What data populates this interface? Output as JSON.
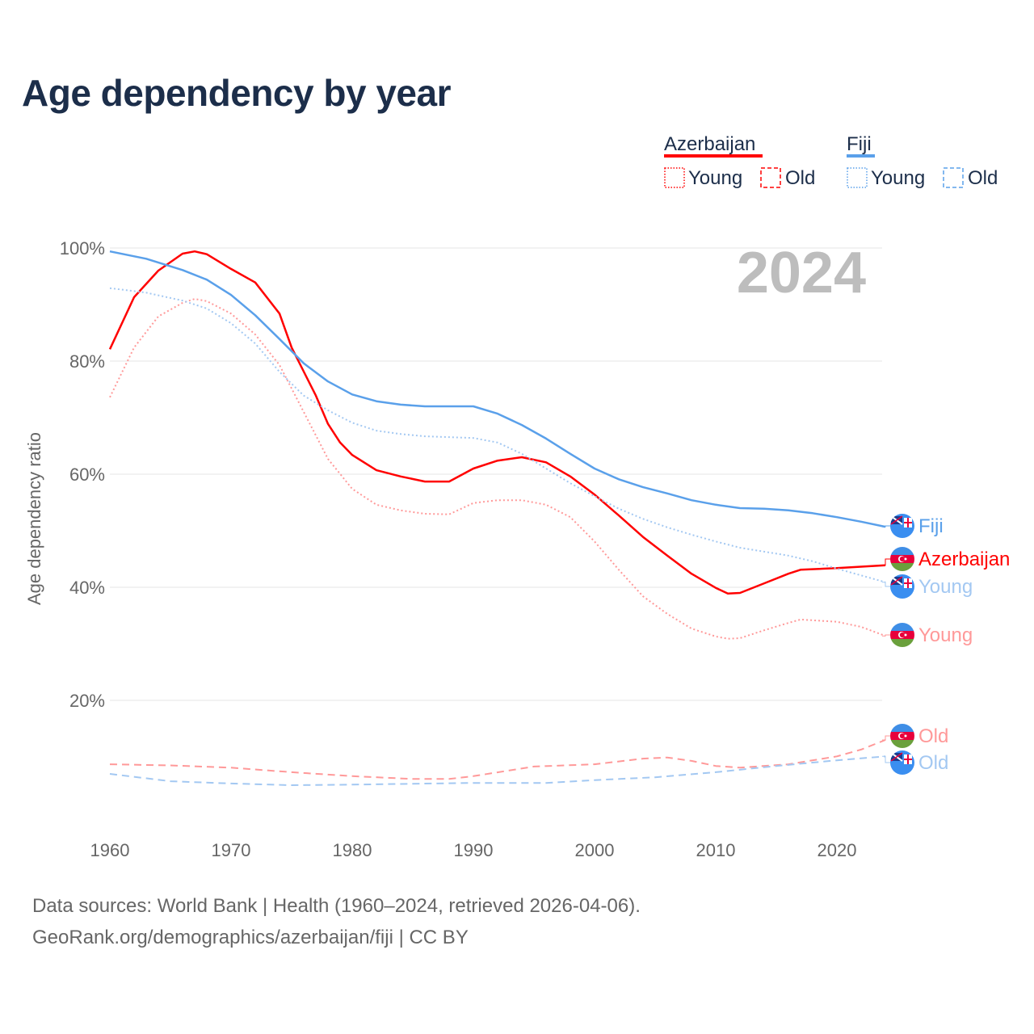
{
  "title": "Age dependency by year",
  "sources": [
    "Data sources: World Bank | Health (1960–2024, retrieved 2026-04-06).",
    "GeoRank.org/demographics/azerbaijan/fiji | CC BY"
  ],
  "legend": {
    "groups": [
      {
        "name": "Azerbaijan",
        "color": "#ff0000",
        "young": "Young",
        "old": "Old"
      },
      {
        "name": "Fiji",
        "color": "#5aa0ea",
        "young": "Young",
        "old": "Old"
      }
    ]
  },
  "chart_data": {
    "type": "line",
    "title": "Age dependency by year",
    "ylabel": "Age dependency ratio",
    "xlabel": "",
    "year_watermark": "2024",
    "xlim": [
      1960,
      2024
    ],
    "ylim": [
      0,
      100
    ],
    "xticks": [
      1960,
      1970,
      1980,
      1990,
      2000,
      2010,
      2020
    ],
    "yticks": [
      {
        "v": 20,
        "label": "20%"
      },
      {
        "v": 40,
        "label": "40%"
      },
      {
        "v": 60,
        "label": "60%"
      },
      {
        "v": 80,
        "label": "80%"
      },
      {
        "v": 100,
        "label": "100%"
      }
    ],
    "grid": true,
    "legend_position": "top-right",
    "series": [
      {
        "name": "Azerbaijan",
        "label": "Azerbaijan",
        "country": "Azerbaijan",
        "color": "#ff0000",
        "style": "solid",
        "x": [
          1960,
          1962,
          1964,
          1966,
          1967,
          1968,
          1970,
          1972,
          1974,
          1975,
          1977,
          1978,
          1979,
          1980,
          1982,
          1984,
          1986,
          1988,
          1990,
          1992,
          1994,
          1996,
          1998,
          2000,
          2002,
          2004,
          2006,
          2008,
          2010,
          2011,
          2012,
          2014,
          2016,
          2017,
          2020,
          2024
        ],
        "y": [
          82.1,
          91.3,
          96,
          99,
          99.4,
          98.9,
          96.3,
          93.9,
          88.4,
          82.4,
          73.9,
          68.9,
          65.6,
          63.4,
          60.7,
          59.6,
          58.7,
          58.7,
          61,
          62.4,
          63,
          62.1,
          59.6,
          56.4,
          52.7,
          48.9,
          45.6,
          42.4,
          39.9,
          38.9,
          39,
          40.7,
          42.4,
          43.1,
          43.4,
          43.9
        ]
      },
      {
        "name": "Azerbaijan Young",
        "label": "Young",
        "country": "Azerbaijan",
        "color": "#ff9999",
        "style": "dotted",
        "x": [
          1960,
          1962,
          1964,
          1966,
          1967,
          1968,
          1970,
          1972,
          1974,
          1976,
          1978,
          1980,
          1982,
          1984,
          1986,
          1988,
          1990,
          1992,
          1994,
          1996,
          1998,
          2000,
          2002,
          2004,
          2006,
          2008,
          2010,
          2011,
          2012,
          2014,
          2016,
          2017,
          2020,
          2022,
          2024
        ],
        "y": [
          73.6,
          82.4,
          87.9,
          90.3,
          91,
          90.6,
          88.4,
          84.7,
          79.3,
          71,
          62.7,
          57.4,
          54.6,
          53.6,
          53,
          52.9,
          54.9,
          55.4,
          55.4,
          54.6,
          52.4,
          48.1,
          43.1,
          38.4,
          35.3,
          32.7,
          31.3,
          30.9,
          31,
          32.4,
          33.7,
          34.3,
          33.9,
          33,
          31.4
        ]
      },
      {
        "name": "Azerbaijan Old",
        "label": "Old",
        "country": "Azerbaijan",
        "color": "#ff9999",
        "style": "dashed",
        "x": [
          1960,
          1965,
          1970,
          1975,
          1980,
          1985,
          1988,
          1990,
          1995,
          2000,
          2004,
          2006,
          2008,
          2010,
          2012,
          2016,
          2020,
          2022,
          2024
        ],
        "y": [
          8.7,
          8.5,
          8.1,
          7.3,
          6.6,
          6.1,
          6.1,
          6.6,
          8.3,
          8.7,
          9.7,
          9.9,
          9.3,
          8.4,
          8.1,
          8.7,
          10.1,
          11.3,
          13
        ]
      },
      {
        "name": "Fiji",
        "label": "Fiji",
        "country": "Fiji",
        "color": "#5aa0ea",
        "style": "solid",
        "x": [
          1960,
          1963,
          1966,
          1968,
          1970,
          1972,
          1974,
          1976,
          1978,
          1980,
          1982,
          1984,
          1986,
          1990,
          1992,
          1994,
          1996,
          1998,
          2000,
          2002,
          2004,
          2006,
          2008,
          2010,
          2012,
          2014,
          2016,
          2018,
          2020,
          2022,
          2024
        ],
        "y": [
          99.4,
          98.1,
          96.1,
          94.4,
          91.7,
          88.1,
          83.9,
          79.6,
          76.4,
          74.1,
          72.9,
          72.3,
          72,
          72,
          70.7,
          68.7,
          66.3,
          63.6,
          61,
          59.1,
          57.7,
          56.6,
          55.4,
          54.6,
          54,
          53.9,
          53.6,
          53.1,
          52.4,
          51.6,
          50.7
        ]
      },
      {
        "name": "Fiji Young",
        "label": "Young",
        "country": "Fiji",
        "color": "#a3c8f2",
        "style": "dotted",
        "x": [
          1960,
          1963,
          1966,
          1968,
          1970,
          1972,
          1974,
          1976,
          1978,
          1980,
          1982,
          1984,
          1986,
          1990,
          1992,
          1994,
          1996,
          1998,
          2000,
          2002,
          2004,
          2006,
          2008,
          2010,
          2012,
          2014,
          2016,
          2018,
          2020,
          2022,
          2024
        ],
        "y": [
          92.9,
          92.1,
          90.7,
          89.3,
          86.7,
          83.1,
          78.1,
          73.9,
          71.3,
          69.1,
          67.7,
          67.1,
          66.7,
          66.4,
          65.6,
          63.6,
          61,
          58.4,
          56.1,
          53.9,
          52.1,
          50.6,
          49.3,
          48.1,
          47,
          46.3,
          45.6,
          44.6,
          43.3,
          42.1,
          40.9
        ]
      },
      {
        "name": "Fiji Old",
        "label": "Old",
        "country": "Fiji",
        "color": "#a3c8f2",
        "style": "dashed",
        "x": [
          1960,
          1965,
          1970,
          1975,
          1980,
          1990,
          1996,
          2000,
          2005,
          2010,
          2015,
          2020,
          2024
        ],
        "y": [
          7,
          5.7,
          5.3,
          5,
          5.1,
          5.4,
          5.4,
          5.9,
          6.4,
          7.3,
          8.4,
          9.4,
          10.1
        ]
      }
    ]
  }
}
